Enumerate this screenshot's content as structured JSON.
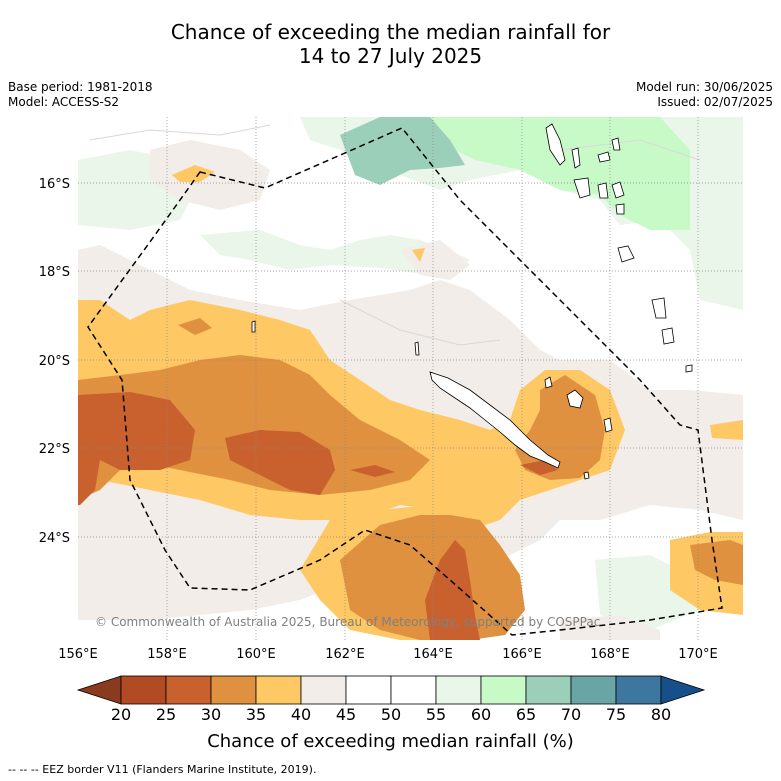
{
  "title": {
    "line1": "Chance of exceeding the median rainfall for",
    "line2": "14 to 27 July 2025"
  },
  "meta": {
    "base_period": "Base period: 1981-2018",
    "model": "Model: ACCESS-S2",
    "model_run": "Model run: 30/06/2025",
    "issued": "Issued: 02/07/2025"
  },
  "map": {
    "lat_labels": [
      "16°S",
      "18°S",
      "20°S",
      "22°S",
      "24°S"
    ],
    "lon_labels": [
      "156°E",
      "158°E",
      "160°E",
      "162°E",
      "164°E",
      "166°E",
      "168°E",
      "170°E"
    ],
    "copyright": "© Commonwealth of Australia 2025, Bureau of Meteorology, supported by COSPPac"
  },
  "colorbar": {
    "ticks": [
      "20",
      "25",
      "30",
      "35",
      "40",
      "45",
      "50",
      "55",
      "60",
      "65",
      "70",
      "75",
      "80"
    ],
    "colors": [
      "#8a3a1e",
      "#b24b23",
      "#c9612f",
      "#e0913f",
      "#fec865",
      "#f2ede9",
      "#ffffff",
      "#ffffff",
      "#eaf6ea",
      "#c8fac8",
      "#9ccfb9",
      "#6aa5a5",
      "#3d77a0",
      "#174f8a"
    ],
    "title": "Chance of exceeding median rainfall (%)"
  },
  "footer": "--  --  -- EEZ border V11 (Flanders Marine Institute, 2019)."
}
